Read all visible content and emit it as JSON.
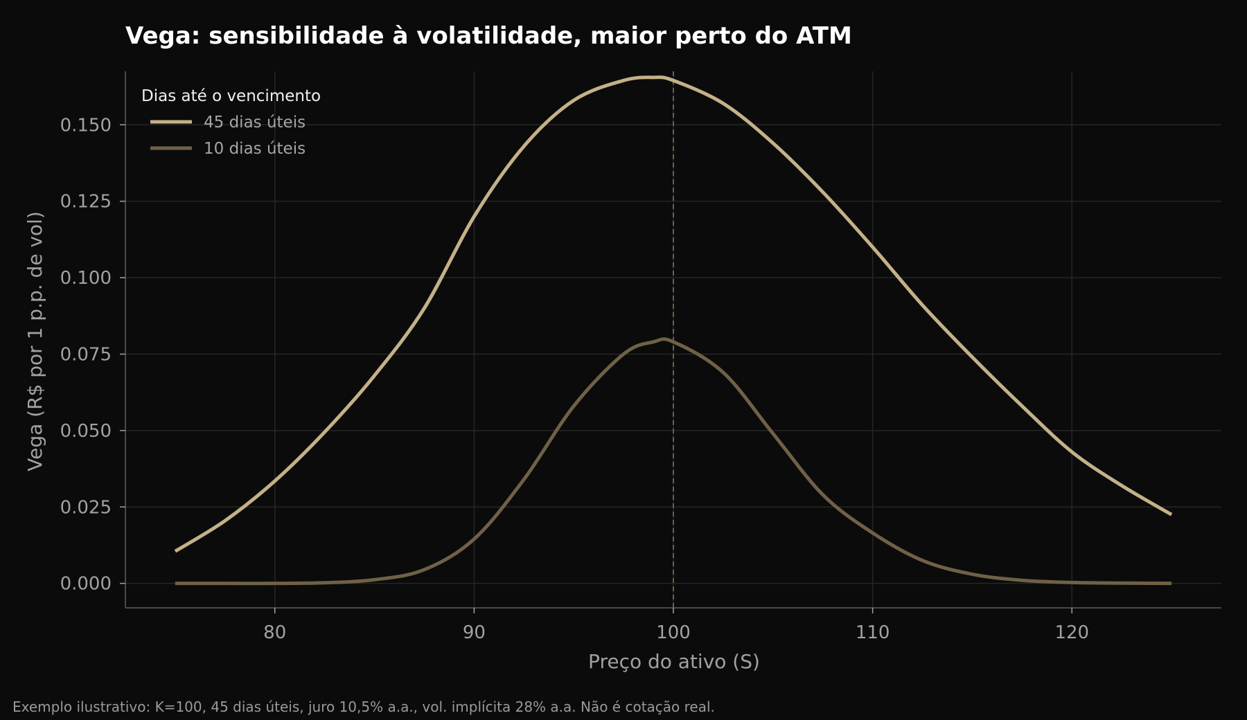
{
  "title": "Vega: sensibilidade à volatilidade, maior perto do ATM",
  "footnote": "Exemplo ilustrativo: K=100, 45 dias úteis, juro 10,5% a.a., vol. implícita 28% a.a. Não é cotação real.",
  "colors": {
    "background": "#0b0b0b",
    "grid": "#262626",
    "axis": "#4a4a4a",
    "series_45": "#c4b188",
    "series_10": "#6f6147",
    "atm_line": "#6f6147"
  },
  "chart_data": {
    "type": "line",
    "title": "Vega: sensibilidade à volatilidade, maior perto do ATM",
    "xlabel": "Preço do ativo (S)",
    "ylabel": "Vega (R$ por 1 p.p. de vol)",
    "xlim": [
      72.5,
      127.5
    ],
    "ylim": [
      -0.008,
      0.1675
    ],
    "xticks": [
      80,
      90,
      100,
      110,
      120
    ],
    "xtick_labels": [
      "80",
      "90",
      "100",
      "110",
      "120"
    ],
    "yticks": [
      0.0,
      0.025,
      0.05,
      0.075,
      0.1,
      0.125,
      0.15
    ],
    "ytick_labels": [
      "0.000",
      "0.025",
      "0.050",
      "0.075",
      "0.100",
      "0.125",
      "0.150"
    ],
    "grid": true,
    "legend_title": "Dias até o vencimento",
    "legend_position": "top-left",
    "reference_line": {
      "x": 100,
      "style": "dashed"
    },
    "x": [
      75,
      77.5,
      80,
      82.5,
      85,
      87.5,
      90,
      92.5,
      95,
      97.5,
      99,
      100,
      102.5,
      105,
      107.5,
      110,
      112.5,
      115,
      117.5,
      120,
      122.5,
      125
    ],
    "series": [
      {
        "name": "45 dias úteis",
        "values": [
          0.0105,
          0.0205,
          0.0335,
          0.0495,
          0.068,
          0.09,
          0.12,
          0.143,
          0.158,
          0.1645,
          0.1655,
          0.1645,
          0.157,
          0.144,
          0.128,
          0.11,
          0.091,
          0.074,
          0.058,
          0.043,
          0.032,
          0.0225
        ]
      },
      {
        "name": "10 dias úteis",
        "values": [
          0.0,
          0.0,
          0.0,
          0.0002,
          0.0012,
          0.0045,
          0.0145,
          0.034,
          0.058,
          0.075,
          0.079,
          0.079,
          0.069,
          0.049,
          0.029,
          0.0165,
          0.0075,
          0.003,
          0.001,
          0.0003,
          0.0001,
          0.0
        ]
      }
    ]
  }
}
